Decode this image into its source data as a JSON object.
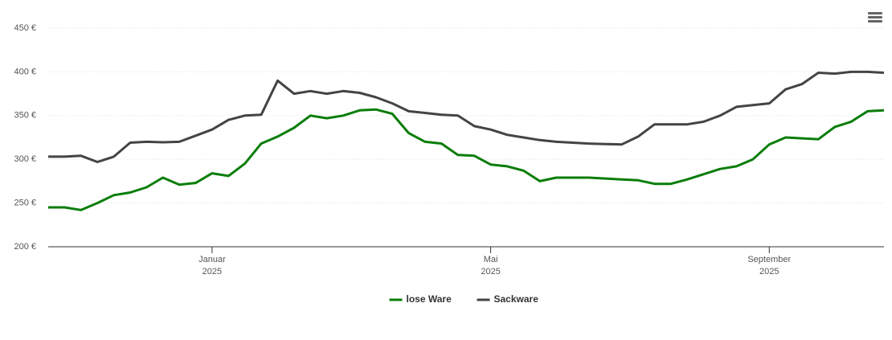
{
  "chart_data": {
    "type": "line",
    "categories": [
      null,
      null,
      null,
      null,
      null,
      null,
      null,
      null,
      null,
      null,
      "Januar 2025",
      null,
      null,
      null,
      null,
      null,
      null,
      null,
      null,
      null,
      null,
      null,
      null,
      null,
      null,
      null,
      null,
      "Mai 2025",
      null,
      null,
      null,
      null,
      null,
      null,
      null,
      null,
      null,
      null,
      null,
      null,
      null,
      null,
      null,
      null,
      "September 2025",
      null,
      null,
      null,
      null,
      null,
      null,
      null
    ],
    "series": [
      {
        "name": "lose Ware",
        "color": "#0a7d0a",
        "values": [
          245,
          245,
          242,
          250,
          259,
          262,
          268,
          279,
          271,
          273,
          284,
          281,
          295,
          318,
          326,
          336,
          350,
          347,
          350,
          356,
          357,
          352,
          330,
          320,
          318,
          305,
          304,
          294,
          292,
          287,
          275,
          279,
          279,
          279,
          278,
          277,
          276,
          272,
          272,
          277,
          283,
          289,
          292,
          300,
          317,
          325,
          324,
          323,
          337,
          343,
          355,
          356
        ]
      },
      {
        "name": "Sackware",
        "color": "#444444",
        "values": [
          303,
          303,
          304,
          297,
          303,
          319,
          320,
          319.5,
          320,
          327,
          334,
          345,
          350,
          351,
          390,
          375,
          378,
          375,
          378,
          376,
          371,
          364,
          355,
          353,
          351,
          350,
          338,
          334,
          328,
          325,
          322,
          320,
          319,
          318,
          317.5,
          317,
          326,
          340,
          340,
          340,
          343,
          350,
          360,
          362,
          364,
          380,
          386,
          399,
          398,
          400,
          400,
          399
        ]
      }
    ],
    "ylim": [
      200,
      450
    ],
    "yticks": [
      {
        "value": 200,
        "label": "200 €"
      },
      {
        "value": 250,
        "label": "250 €"
      },
      {
        "value": 300,
        "label": "300 €"
      },
      {
        "value": 350,
        "label": "350 €"
      },
      {
        "value": 400,
        "label": "400 €"
      },
      {
        "value": 450,
        "label": "450 €"
      }
    ],
    "grid": true,
    "legend": "bottom"
  }
}
